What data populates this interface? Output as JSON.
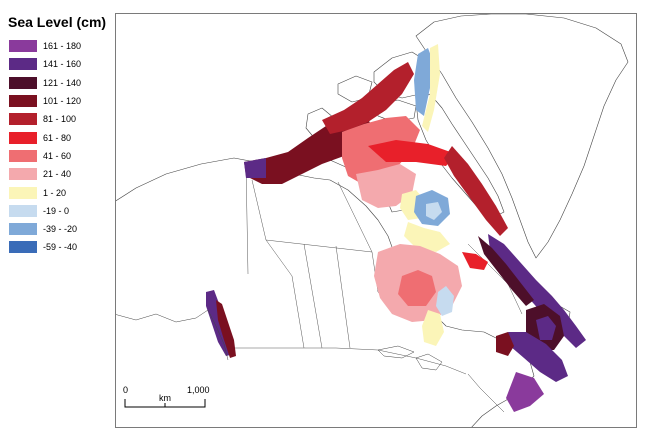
{
  "legend": {
    "title": "Sea Level (cm)",
    "items": [
      {
        "label": "161 - 180",
        "color": "#8a3a9c"
      },
      {
        "label": "141 - 160",
        "color": "#5c2a86"
      },
      {
        "label": "121 - 140",
        "color": "#4d0f2a"
      },
      {
        "label": "101 - 120",
        "color": "#7a1020"
      },
      {
        "label": "81 - 100",
        "color": "#b3202c"
      },
      {
        "label": "61 - 80",
        "color": "#e8202a"
      },
      {
        "label": "41 - 60",
        "color": "#ef6e72"
      },
      {
        "label": "21 - 40",
        "color": "#f4a9ad"
      },
      {
        "label": "1 - 20",
        "color": "#fbf5b8"
      },
      {
        "label": "-19 - 0",
        "color": "#c6dbef"
      },
      {
        "label": "-39 - -20",
        "color": "#7fa9d8"
      },
      {
        "label": "-59 - -40",
        "color": "#3a6cb8"
      }
    ]
  },
  "scalebar": {
    "start": "0",
    "unit": "km",
    "end": "1,000"
  }
}
